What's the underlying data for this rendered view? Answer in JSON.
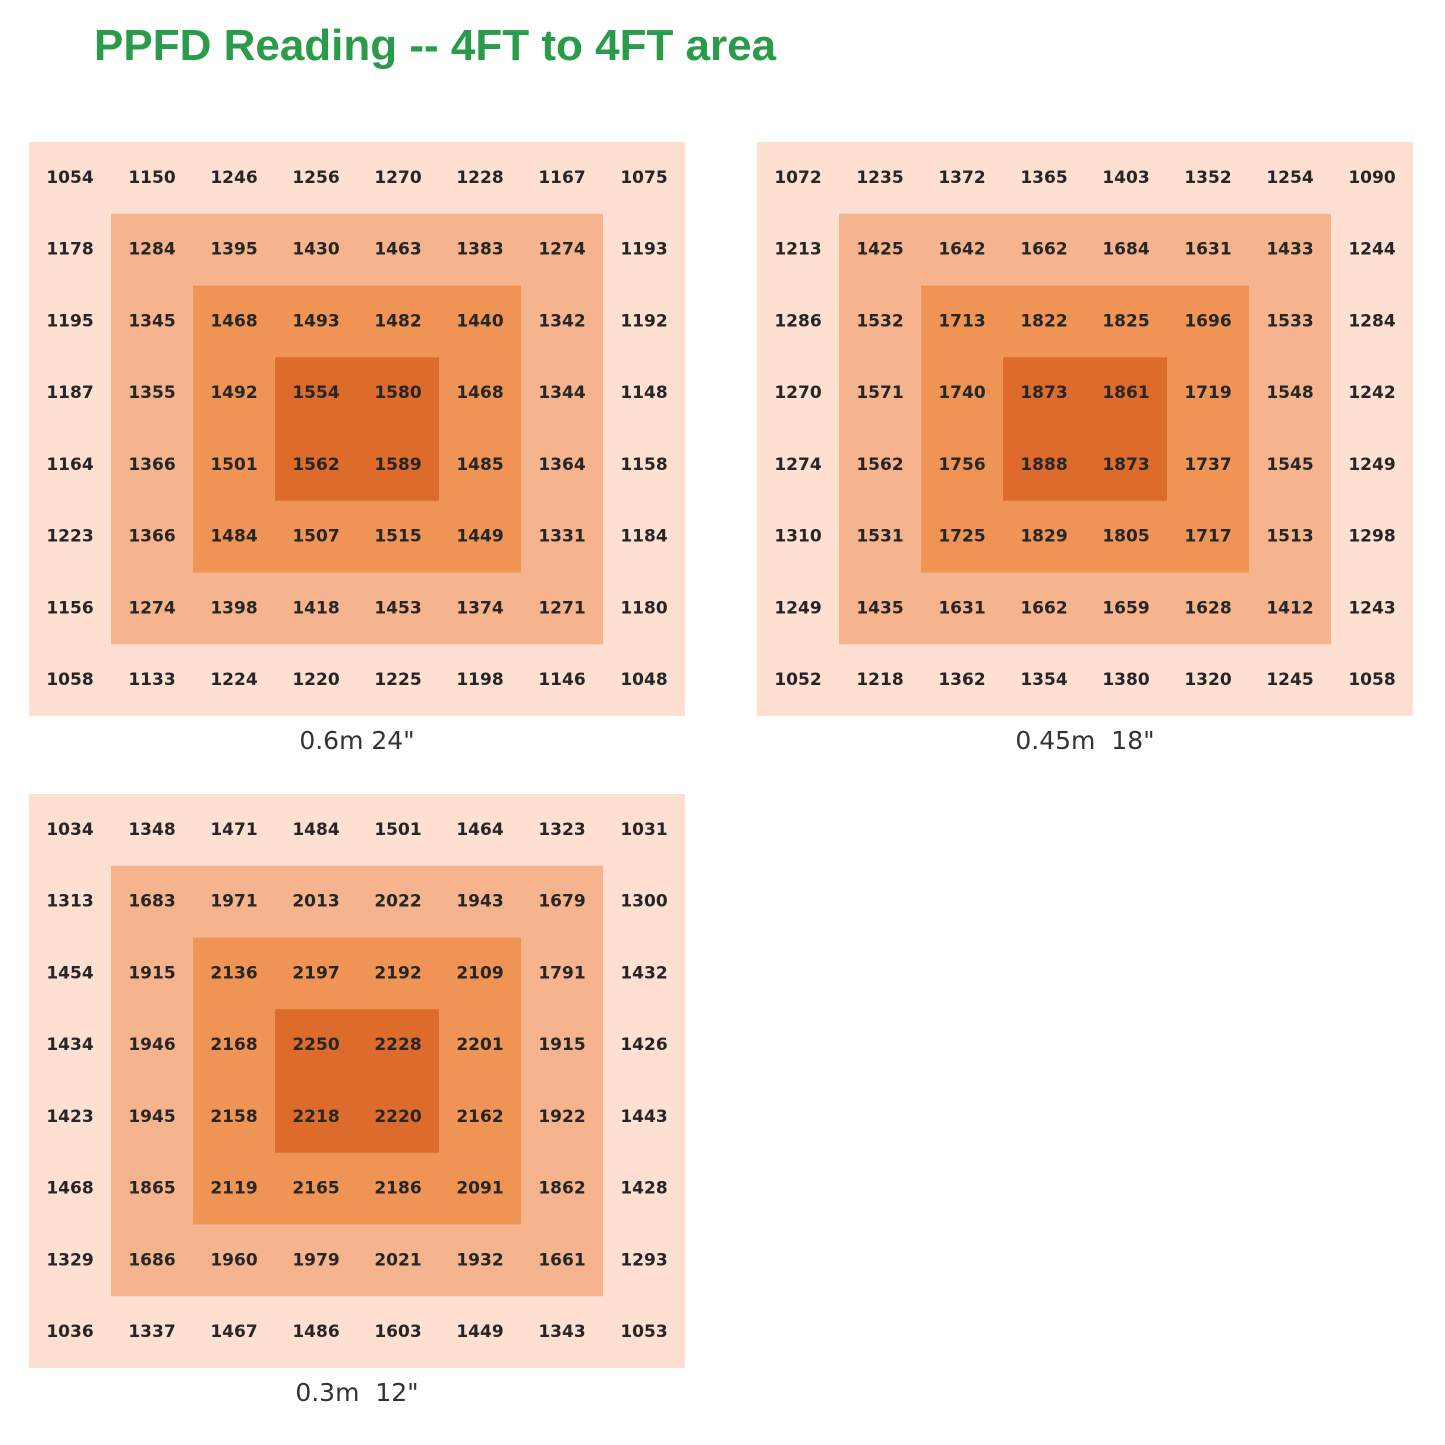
{
  "title": "PPFD Reading -- 4FT to 4FT area",
  "colors": {
    "title": "#2a9b4b",
    "zone_outer": "#fde0d2",
    "zone_ring2": "#f5b48d",
    "zone_ring3": "#ef9455",
    "zone_center": "#dd6b2c",
    "value_text": "#262626"
  },
  "chart_data": [
    {
      "type": "heatmap",
      "caption": "0.6m 24\"",
      "rows": [
        [
          1054,
          1150,
          1246,
          1256,
          1270,
          1228,
          1167,
          1075
        ],
        [
          1178,
          1284,
          1395,
          1430,
          1463,
          1383,
          1274,
          1193
        ],
        [
          1195,
          1345,
          1468,
          1493,
          1482,
          1440,
          1342,
          1192
        ],
        [
          1187,
          1355,
          1492,
          1554,
          1580,
          1468,
          1344,
          1148
        ],
        [
          1164,
          1366,
          1501,
          1562,
          1589,
          1485,
          1364,
          1158
        ],
        [
          1223,
          1366,
          1484,
          1507,
          1515,
          1449,
          1331,
          1184
        ],
        [
          1156,
          1274,
          1398,
          1418,
          1453,
          1374,
          1271,
          1180
        ],
        [
          1058,
          1133,
          1224,
          1220,
          1225,
          1198,
          1146,
          1048
        ]
      ]
    },
    {
      "type": "heatmap",
      "caption": "0.45m  18\"",
      "rows": [
        [
          1072,
          1235,
          1372,
          1365,
          1403,
          1352,
          1254,
          1090
        ],
        [
          1213,
          1425,
          1642,
          1662,
          1684,
          1631,
          1433,
          1244
        ],
        [
          1286,
          1532,
          1713,
          1822,
          1825,
          1696,
          1533,
          1284
        ],
        [
          1270,
          1571,
          1740,
          1873,
          1861,
          1719,
          1548,
          1242
        ],
        [
          1274,
          1562,
          1756,
          1888,
          1873,
          1737,
          1545,
          1249
        ],
        [
          1310,
          1531,
          1725,
          1829,
          1805,
          1717,
          1513,
          1298
        ],
        [
          1249,
          1435,
          1631,
          1662,
          1659,
          1628,
          1412,
          1243
        ],
        [
          1052,
          1218,
          1362,
          1354,
          1380,
          1320,
          1245,
          1058
        ]
      ]
    },
    {
      "type": "heatmap",
      "caption": "0.3m  12\"",
      "rows": [
        [
          1034,
          1348,
          1471,
          1484,
          1501,
          1464,
          1323,
          1031
        ],
        [
          1313,
          1683,
          1971,
          2013,
          2022,
          1943,
          1679,
          1300
        ],
        [
          1454,
          1915,
          2136,
          2197,
          2192,
          2109,
          1791,
          1432
        ],
        [
          1434,
          1946,
          2168,
          2250,
          2228,
          2201,
          1915,
          1426
        ],
        [
          1423,
          1945,
          2158,
          2218,
          2220,
          2162,
          1922,
          1443
        ],
        [
          1468,
          1865,
          2119,
          2165,
          2186,
          2091,
          1862,
          1428
        ],
        [
          1329,
          1686,
          1960,
          1979,
          2021,
          1932,
          1661,
          1293
        ],
        [
          1036,
          1337,
          1467,
          1486,
          1603,
          1449,
          1343,
          1053
        ]
      ]
    }
  ]
}
